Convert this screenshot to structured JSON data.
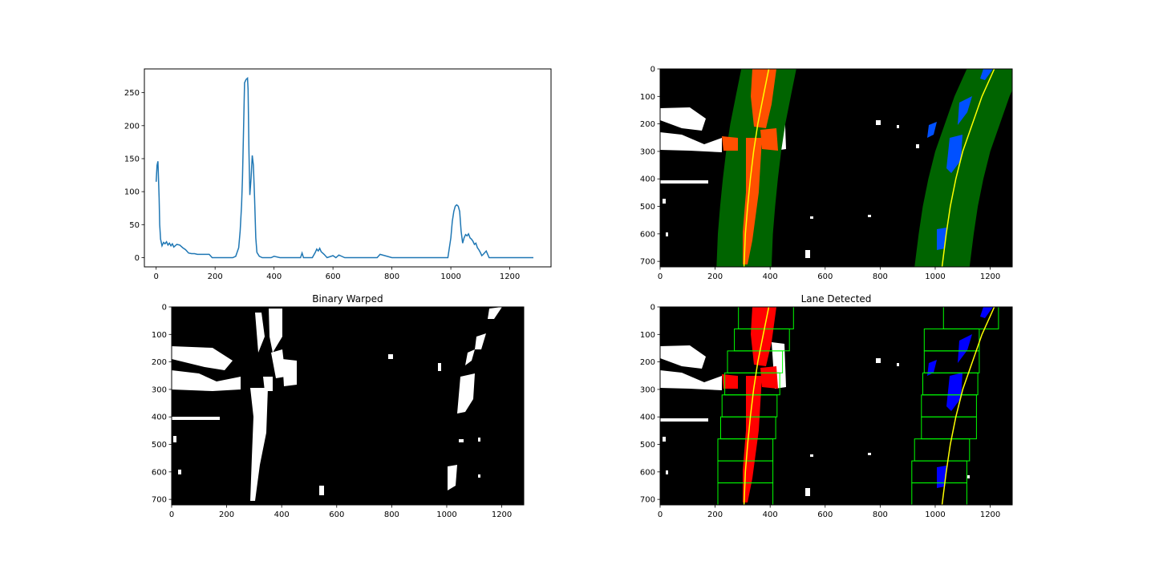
{
  "chart_data": [
    {
      "type": "line",
      "title": "",
      "xlabel": "",
      "ylabel": "",
      "xlim": [
        -40,
        1340
      ],
      "ylim": [
        -14,
        286
      ],
      "xticks": [
        0,
        200,
        400,
        600,
        800,
        1000,
        1200
      ],
      "yticks": [
        0,
        50,
        100,
        150,
        200,
        250
      ],
      "grid": false,
      "line_color": "#1f77b4",
      "series": [
        {
          "x": [
            0,
            3,
            6,
            8,
            10,
            12,
            15,
            20,
            25,
            30,
            35,
            40,
            45,
            50,
            55,
            60,
            70,
            80,
            90,
            100,
            110,
            120,
            130,
            140,
            150,
            160,
            170,
            180,
            190,
            200,
            210,
            220,
            230,
            240,
            250,
            260,
            270,
            280,
            285,
            290,
            293,
            296,
            300,
            305,
            310,
            312,
            315,
            318,
            322,
            326,
            330,
            334,
            338,
            342,
            346,
            350,
            360,
            380,
            390,
            400,
            420,
            440,
            460,
            480,
            490,
            495,
            500,
            510,
            530,
            540,
            545,
            550,
            555,
            560,
            570,
            580,
            600,
            610,
            620,
            640,
            700,
            750,
            760,
            800,
            850,
            900,
            950,
            975,
            990,
            1000,
            1005,
            1010,
            1015,
            1020,
            1025,
            1030,
            1035,
            1040,
            1045,
            1050,
            1055,
            1060,
            1065,
            1070,
            1075,
            1080,
            1085,
            1090,
            1095,
            1100,
            1105,
            1110,
            1120,
            1130,
            1150,
            1200,
            1280
          ],
          "y": [
            115,
            140,
            146,
            120,
            90,
            50,
            28,
            18,
            23,
            21,
            24,
            19,
            22,
            18,
            21,
            16,
            20,
            19,
            15,
            12,
            7,
            6,
            6,
            5,
            5,
            5,
            5,
            5,
            0,
            0,
            0,
            0,
            0,
            0,
            0,
            0,
            2,
            15,
            40,
            80,
            120,
            180,
            265,
            270,
            272,
            255,
            160,
            95,
            120,
            155,
            140,
            90,
            30,
            8,
            5,
            2,
            0,
            0,
            0,
            2,
            0,
            0,
            0,
            0,
            0,
            7,
            0,
            0,
            0,
            8,
            13,
            10,
            14,
            9,
            5,
            0,
            3,
            0,
            4,
            0,
            0,
            0,
            5,
            0,
            0,
            0,
            0,
            0,
            0,
            30,
            55,
            70,
            78,
            80,
            78,
            70,
            40,
            22,
            30,
            35,
            33,
            36,
            30,
            28,
            25,
            20,
            22,
            15,
            12,
            8,
            3,
            5,
            10,
            0,
            0,
            0,
            0
          ]
        }
      ]
    },
    {
      "type": "image",
      "title": "",
      "xlim": [
        0,
        1280
      ],
      "ylim": [
        720,
        0
      ],
      "xticks": [
        0,
        200,
        400,
        600,
        800,
        1000,
        1200
      ],
      "yticks": [
        0,
        100,
        200,
        300,
        400,
        500,
        600,
        700
      ],
      "left_lane_pixel_color": "#ff5000",
      "right_lane_pixel_color": "#0050ff",
      "search_band_color": "#006400",
      "fit_line_color": "#ffff00",
      "left_fit_x_at_y": [
        [
          0,
          395
        ],
        [
          100,
          375
        ],
        [
          200,
          355
        ],
        [
          300,
          340
        ],
        [
          400,
          328
        ],
        [
          500,
          318
        ],
        [
          600,
          310
        ],
        [
          720,
          305
        ]
      ],
      "right_fit_x_at_y": [
        [
          0,
          1215
        ],
        [
          100,
          1170
        ],
        [
          200,
          1135
        ],
        [
          300,
          1100
        ],
        [
          400,
          1075
        ],
        [
          500,
          1055
        ],
        [
          600,
          1040
        ],
        [
          720,
          1025
        ]
      ],
      "search_margin": 100
    },
    {
      "type": "image",
      "title": "Binary Warped",
      "xlim": [
        0,
        1280
      ],
      "ylim": [
        720,
        0
      ],
      "xticks": [
        0,
        200,
        400,
        600,
        800,
        1000,
        1200
      ],
      "yticks": [
        0,
        100,
        200,
        300,
        400,
        500,
        600,
        700
      ]
    },
    {
      "type": "image",
      "title": "Lane Detected",
      "xlim": [
        0,
        1280
      ],
      "ylim": [
        720,
        0
      ],
      "xticks": [
        0,
        200,
        400,
        600,
        800,
        1000,
        1200
      ],
      "yticks": [
        0,
        100,
        200,
        300,
        400,
        500,
        600,
        700
      ],
      "left_lane_pixel_color": "#ff0000",
      "right_lane_pixel_color": "#0000ff",
      "window_color": "#00ff00",
      "fit_line_color": "#ffff00",
      "left_fit_x_at_y": [
        [
          0,
          395
        ],
        [
          100,
          375
        ],
        [
          200,
          355
        ],
        [
          300,
          340
        ],
        [
          400,
          328
        ],
        [
          500,
          318
        ],
        [
          600,
          310
        ],
        [
          720,
          305
        ]
      ],
      "right_fit_x_at_y": [
        [
          0,
          1215
        ],
        [
          100,
          1170
        ],
        [
          200,
          1135
        ],
        [
          300,
          1100
        ],
        [
          400,
          1075
        ],
        [
          500,
          1055
        ],
        [
          600,
          1040
        ],
        [
          720,
          1025
        ]
      ],
      "window_height": 80,
      "left_window_centers": [
        385,
        370,
        345,
        335,
        325,
        320,
        310,
        310,
        310
      ],
      "right_window_centers": [
        1130,
        1060,
        1060,
        1055,
        1050,
        1050,
        1025,
        1015,
        1015
      ]
    }
  ]
}
